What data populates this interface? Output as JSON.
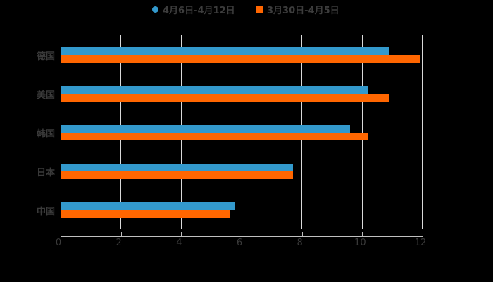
{
  "chart_data": {
    "type": "bar",
    "orientation": "horizontal",
    "title": "",
    "xlabel": "",
    "ylabel": "",
    "categories": [
      "德国",
      "美国",
      "韩国",
      "日本",
      "中国"
    ],
    "series": [
      {
        "name": "4月6日-4月12日",
        "color": "#3399cc",
        "marker": "circle",
        "values": [
          10.9,
          10.2,
          9.6,
          7.7,
          5.8
        ]
      },
      {
        "name": "3月30日-4月5日",
        "color": "#ff6600",
        "marker": "square",
        "values": [
          11.9,
          10.9,
          10.2,
          7.7,
          5.6
        ]
      }
    ],
    "xlim": [
      0,
      12
    ],
    "xticks": [
      "0",
      "2",
      "4",
      "6",
      "8",
      "10",
      "12"
    ],
    "grid": "vertical",
    "legend_position": "top",
    "background": "#000000"
  }
}
